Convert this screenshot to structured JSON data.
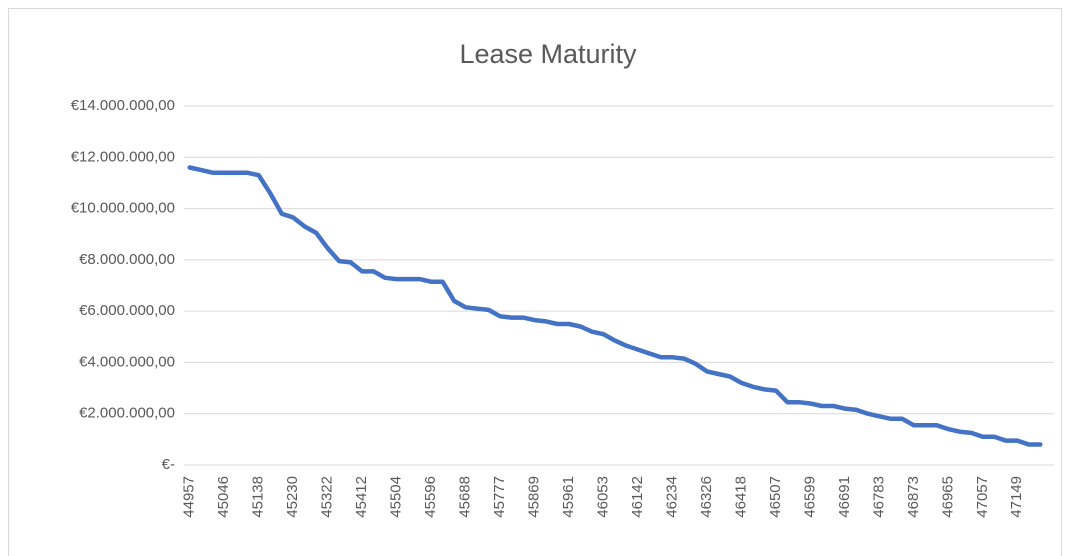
{
  "chart_data": {
    "type": "line",
    "title": "Lease Maturity",
    "categories": [
      "44957",
      null,
      null,
      "45046",
      null,
      null,
      "45138",
      null,
      null,
      "45230",
      null,
      null,
      "45322",
      null,
      null,
      "45412",
      null,
      null,
      "45504",
      null,
      null,
      "45596",
      null,
      null,
      "45688",
      null,
      null,
      "45777",
      null,
      null,
      "45869",
      null,
      null,
      "45961",
      null,
      null,
      "46053",
      null,
      null,
      "46142",
      null,
      null,
      "46234",
      null,
      null,
      "46326",
      null,
      null,
      "46418",
      null,
      null,
      "46507",
      null,
      null,
      "46599",
      null,
      null,
      "46691",
      null,
      null,
      "46783",
      null,
      null,
      "46873",
      null,
      null,
      "46965",
      null,
      null,
      "47057",
      null,
      null,
      "47149",
      null,
      null
    ],
    "series": [
      {
        "name": "Lease Maturity",
        "color": "#4472c4",
        "values": [
          11600000,
          11500000,
          11400000,
          11400000,
          11400000,
          11400000,
          11300000,
          10600000,
          9800000,
          9650000,
          9300000,
          9050000,
          8450000,
          7950000,
          7900000,
          7550000,
          7550000,
          7300000,
          7250000,
          7250000,
          7250000,
          7150000,
          7150000,
          6400000,
          6150000,
          6100000,
          6050000,
          5800000,
          5750000,
          5750000,
          5650000,
          5600000,
          5500000,
          5500000,
          5400000,
          5200000,
          5100000,
          4850000,
          4650000,
          4500000,
          4350000,
          4200000,
          4200000,
          4150000,
          3950000,
          3650000,
          3550000,
          3450000,
          3200000,
          3050000,
          2950000,
          2900000,
          2450000,
          2450000,
          2400000,
          2300000,
          2300000,
          2200000,
          2150000,
          2000000,
          1900000,
          1800000,
          1800000,
          1550000,
          1550000,
          1550000,
          1400000,
          1300000,
          1250000,
          1100000,
          1100000,
          950000,
          950000,
          800000,
          800000
        ]
      }
    ],
    "ylim": [
      0,
      14000000
    ],
    "yticks": [
      {
        "value": 0,
        "label": "€-"
      },
      {
        "value": 2000000,
        "label": "€2.000.000,00"
      },
      {
        "value": 4000000,
        "label": "€4.000.000,00"
      },
      {
        "value": 6000000,
        "label": "€6.000.000,00"
      },
      {
        "value": 8000000,
        "label": "€8.000.000,00"
      },
      {
        "value": 10000000,
        "label": "€10.000.000,00"
      },
      {
        "value": 12000000,
        "label": "€12.000.000,00"
      },
      {
        "value": 14000000,
        "label": "€14.000.000,00"
      }
    ],
    "grid": true
  }
}
